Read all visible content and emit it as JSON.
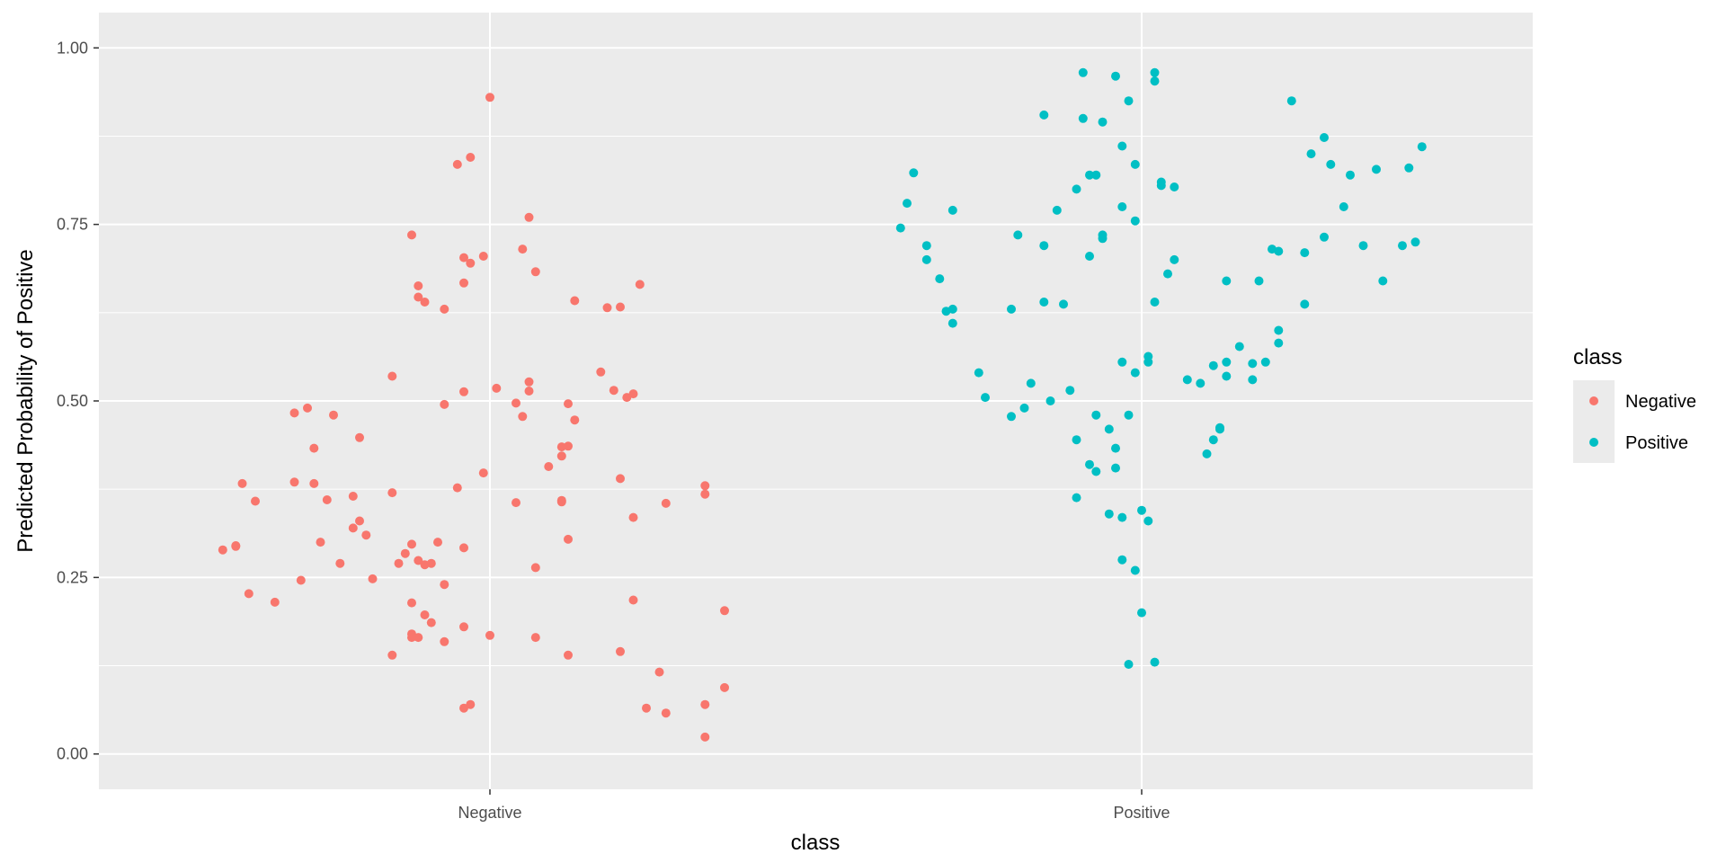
{
  "chart_data": {
    "type": "scatter",
    "title": "",
    "xlabel": "class",
    "ylabel": "Predicted Probability of Positive",
    "categories": [
      "Negative",
      "Positive"
    ],
    "ylim": [
      0,
      1
    ],
    "yticks": [
      0,
      0.25,
      0.5,
      0.75,
      1
    ],
    "ytick_labels": [
      "0.00",
      "0.25",
      "0.50",
      "0.75",
      "1.00"
    ],
    "grid": true,
    "jitter_note": "points are horizontally jittered around their category",
    "legend": {
      "title": "class",
      "placement": "right",
      "entries": [
        "Negative",
        "Positive"
      ]
    },
    "colors": {
      "Negative": "#F8766D",
      "Positive": "#00BFC4",
      "panel": "#EBEBEB",
      "grid": "#FFFFFF"
    },
    "series": [
      {
        "name": "Negative",
        "x_offsets": [
          0.0,
          -0.05,
          -0.03,
          -0.04,
          -0.03,
          0.06,
          -0.12,
          -0.04,
          -0.01,
          0.05,
          -0.11,
          -0.11,
          -0.07,
          0.07,
          0.13,
          0.18,
          0.2,
          0.23,
          -0.1,
          -0.15,
          -0.3,
          -0.28,
          -0.27,
          -0.24,
          -0.2,
          -0.21,
          -0.07,
          -0.04,
          0.01,
          0.06,
          0.06,
          0.05,
          0.04,
          0.12,
          0.19,
          0.21,
          0.11,
          0.11,
          0.12,
          0.11,
          0.09,
          0.13,
          0.17,
          0.22,
          -0.15,
          -0.3,
          -0.39,
          -0.38,
          -0.41,
          -0.36,
          -0.27,
          -0.25,
          -0.21,
          -0.19,
          -0.2,
          -0.14,
          -0.18,
          -0.13,
          -0.04,
          -0.05,
          -0.01,
          0.04,
          0.11,
          0.12,
          0.22,
          0.2,
          0.27,
          0.33,
          0.33,
          -0.39,
          -0.37,
          -0.29,
          -0.33,
          -0.26,
          -0.23,
          -0.1,
          -0.09,
          -0.07,
          -0.04,
          0.0,
          0.07,
          0.2,
          0.26,
          0.36,
          0.33,
          0.24,
          0.27,
          0.33,
          0.36,
          0.22,
          0.12,
          0.07,
          -0.12,
          -0.12,
          -0.11,
          -0.1,
          -0.07,
          -0.08,
          -0.09,
          -0.12,
          -0.11,
          -0.15,
          -0.12,
          -0.03,
          -0.04
        ],
        "values": [
          0.93,
          0.835,
          0.845,
          0.703,
          0.695,
          0.76,
          0.735,
          0.667,
          0.705,
          0.715,
          0.663,
          0.647,
          0.63,
          0.683,
          0.642,
          0.632,
          0.633,
          0.665,
          0.64,
          0.535,
          0.483,
          0.49,
          0.433,
          0.48,
          0.448,
          0.365,
          0.495,
          0.513,
          0.518,
          0.527,
          0.514,
          0.478,
          0.497,
          0.496,
          0.515,
          0.505,
          0.435,
          0.422,
          0.436,
          0.359,
          0.407,
          0.473,
          0.541,
          0.51,
          0.37,
          0.385,
          0.295,
          0.383,
          0.289,
          0.358,
          0.383,
          0.36,
          0.32,
          0.31,
          0.33,
          0.27,
          0.248,
          0.284,
          0.292,
          0.377,
          0.398,
          0.356,
          0.357,
          0.304,
          0.335,
          0.39,
          0.355,
          0.38,
          0.368,
          0.294,
          0.227,
          0.246,
          0.215,
          0.3,
          0.27,
          0.268,
          0.186,
          0.159,
          0.18,
          0.168,
          0.165,
          0.145,
          0.116,
          0.094,
          0.07,
          0.065,
          0.058,
          0.024,
          0.203,
          0.218,
          0.14,
          0.264,
          0.214,
          0.297,
          0.274,
          0.197,
          0.24,
          0.3,
          0.27,
          0.17,
          0.165,
          0.14,
          0.165,
          0.07,
          0.065
        ]
      },
      {
        "name": "Positive",
        "x_offsets": [
          -0.09,
          -0.04,
          0.02,
          -0.02,
          0.02,
          -0.15,
          -0.09,
          -0.06,
          -0.03,
          -0.01,
          0.03,
          0.03,
          -0.08,
          -0.07,
          -0.1,
          -0.13,
          -0.03,
          -0.01,
          -0.06,
          -0.06,
          -0.08,
          -0.15,
          -0.19,
          -0.2,
          -0.29,
          -0.33,
          -0.31,
          -0.29,
          -0.36,
          -0.37,
          -0.35,
          -0.33,
          -0.3,
          -0.29,
          -0.25,
          -0.24,
          -0.2,
          -0.18,
          -0.17,
          -0.14,
          -0.11,
          -0.07,
          -0.05,
          -0.02,
          -0.03,
          -0.04,
          -0.01,
          0.01,
          0.04,
          0.05,
          -0.1,
          -0.07,
          -0.15,
          -0.12,
          -0.1,
          -0.08,
          -0.05,
          -0.03,
          -0.01,
          0.0,
          0.01,
          0.0,
          0.02,
          -0.02,
          -0.03,
          -0.04,
          0.01,
          0.02,
          0.05,
          0.07,
          0.11,
          0.13,
          0.17,
          0.21,
          0.23,
          0.26,
          0.28,
          0.29,
          0.31,
          0.34,
          0.37,
          0.4,
          0.42,
          0.43,
          0.41,
          0.36,
          0.32,
          0.28,
          0.25,
          0.21,
          0.19,
          0.17,
          0.15,
          0.13,
          0.12,
          0.12,
          0.11,
          0.1,
          0.09,
          0.13,
          0.18,
          0.2,
          0.25,
          0.21
        ],
        "values": [
          0.965,
          0.96,
          0.965,
          0.925,
          0.953,
          0.905,
          0.9,
          0.895,
          0.861,
          0.835,
          0.81,
          0.805,
          0.82,
          0.82,
          0.8,
          0.77,
          0.775,
          0.755,
          0.73,
          0.735,
          0.705,
          0.72,
          0.735,
          0.63,
          0.77,
          0.72,
          0.673,
          0.61,
          0.78,
          0.745,
          0.823,
          0.7,
          0.627,
          0.63,
          0.54,
          0.505,
          0.478,
          0.49,
          0.525,
          0.5,
          0.515,
          0.48,
          0.46,
          0.48,
          0.555,
          0.433,
          0.54,
          0.555,
          0.68,
          0.7,
          0.363,
          0.4,
          0.64,
          0.637,
          0.445,
          0.41,
          0.34,
          0.275,
          0.26,
          0.2,
          0.33,
          0.345,
          0.13,
          0.127,
          0.335,
          0.405,
          0.563,
          0.64,
          0.803,
          0.53,
          0.55,
          0.555,
          0.53,
          0.6,
          0.925,
          0.85,
          0.873,
          0.835,
          0.775,
          0.72,
          0.67,
          0.72,
          0.725,
          0.86,
          0.83,
          0.828,
          0.82,
          0.732,
          0.637,
          0.582,
          0.555,
          0.553,
          0.577,
          0.535,
          0.462,
          0.46,
          0.445,
          0.425,
          0.525,
          0.67,
          0.67,
          0.715,
          0.71,
          0.712
        ]
      }
    ]
  }
}
